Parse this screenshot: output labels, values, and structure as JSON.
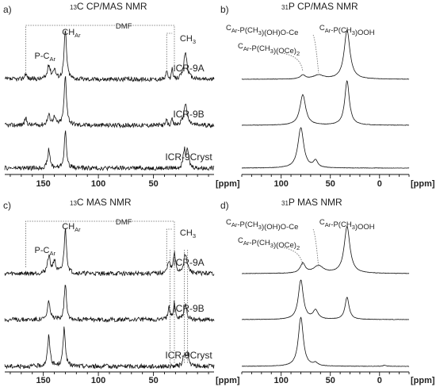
{
  "chart_data": [
    {
      "panel": "a)",
      "title_sup": "13",
      "title": "C CP/MAS NMR",
      "type": "line",
      "xlim": [
        185,
        -5
      ],
      "xticks": [
        150,
        100,
        50
      ],
      "xunit": "[ppm]",
      "bracket_label": "DMF",
      "series": [
        {
          "name": "ICR-9A",
          "peaks": [
            [
              166,
              0.12,
              1.2
            ],
            [
              145,
              0.28,
              1.5
            ],
            [
              140,
              0.2,
              1.4
            ],
            [
              130,
              1.0,
              1.3
            ],
            [
              38,
              0.2,
              0.6
            ],
            [
              33,
              0.2,
              0.6
            ],
            [
              21,
              0.55,
              1.8
            ]
          ]
        },
        {
          "name": "ICR-9B",
          "peaks": [
            [
              166,
              0.14,
              1.2
            ],
            [
              145,
              0.2,
              1.5
            ],
            [
              140,
              0.15,
              1.4
            ],
            [
              130,
              1.0,
              1.3
            ],
            [
              38,
              0.12,
              0.6
            ],
            [
              33,
              0.12,
              0.6
            ],
            [
              21,
              0.45,
              1.8
            ]
          ]
        },
        {
          "name": "ICR-9Cryst",
          "peaks": [
            [
              145,
              0.38,
              1.2
            ],
            [
              130,
              0.75,
              1.2
            ],
            [
              22,
              0.36,
              1.2
            ],
            [
              19,
              0.34,
              1.2
            ]
          ]
        }
      ],
      "annotations": [
        {
          "text": "P-C",
          "sub": "Ar"
        },
        {
          "text": "CH",
          "sub": "Ar"
        },
        {
          "text": "CH",
          "sub": "3"
        }
      ]
    },
    {
      "panel": "b)",
      "title_sup": "31",
      "title": "P CP/MAS NMR",
      "type": "line",
      "xlim": [
        140,
        -30
      ],
      "xticks": [
        100,
        50,
        0
      ],
      "xunit": "[ppm]",
      "series": [
        {
          "name": "",
          "peaks": [
            [
              78,
              0.08,
              3
            ],
            [
              62,
              0.08,
              6
            ],
            [
              33,
              1.0,
              3.5
            ]
          ]
        },
        {
          "name": "",
          "peaks": [
            [
              78,
              0.62,
              3.5
            ],
            [
              33,
              0.9,
              2.8
            ]
          ]
        },
        {
          "name": "",
          "peaks": [
            [
              80,
              0.82,
              3.5
            ],
            [
              65,
              0.14,
              2.5
            ]
          ]
        }
      ],
      "annotations": [
        {
          "text": "C",
          "sub": "Ar",
          "text2": "-P(CH",
          "sub2": "3",
          "text3": ")(OH)O-Ce"
        },
        {
          "text": "C",
          "sub": "Ar",
          "text2": "-P(CH",
          "sub2": "3",
          "text3": ")(OCe)",
          "sub3": "2"
        },
        {
          "text": "C",
          "sub": "Ar",
          "text2": "-P(CH",
          "sub2": "3",
          "text3": ")OOH"
        }
      ]
    },
    {
      "panel": "c)",
      "title_sup": "13",
      "title": "C MAS NMR",
      "type": "line",
      "xlim": [
        185,
        -5
      ],
      "xticks": [
        150,
        100,
        50
      ],
      "xunit": "[ppm]",
      "bracket_label": "DMF",
      "series": [
        {
          "name": "ICR-9A",
          "peaks": [
            [
              145,
              0.35,
              1.5
            ],
            [
              140,
              0.25,
              1.4
            ],
            [
              130,
              0.9,
              1.3
            ],
            [
              36,
              0.25,
              1.2
            ],
            [
              31,
              0.4,
              1.2
            ],
            [
              21,
              0.4,
              1.8
            ]
          ]
        },
        {
          "name": "ICR-9B",
          "peaks": [
            [
              145,
              0.4,
              1.2
            ],
            [
              130,
              0.75,
              1.2
            ],
            [
              36,
              0.25,
              1.0
            ],
            [
              31,
              0.35,
              1.0
            ],
            [
              21,
              0.3,
              1.5
            ]
          ]
        },
        {
          "name": "ICR-9Cryst",
          "peaks": [
            [
              145,
              0.62,
              1.3
            ],
            [
              131,
              0.8,
              1.2
            ],
            [
              22,
              0.25,
              1.2
            ],
            [
              19,
              0.24,
              1.2
            ]
          ]
        }
      ],
      "annotations": [
        {
          "text": "P-C",
          "sub": "Ar"
        },
        {
          "text": "CH",
          "sub": "Ar"
        },
        {
          "text": "CH",
          "sub": "3"
        }
      ]
    },
    {
      "panel": "d)",
      "title_sup": "31",
      "title": "P MAS NMR",
      "type": "line",
      "xlim": [
        140,
        -30
      ],
      "xticks": [
        100,
        50,
        0
      ],
      "xunit": "[ppm]",
      "series": [
        {
          "name": "",
          "peaks": [
            [
              78,
              0.2,
              3
            ],
            [
              62,
              0.15,
              6
            ],
            [
              33,
              0.95,
              3.5
            ]
          ]
        },
        {
          "name": "",
          "peaks": [
            [
              80,
              0.8,
              3
            ],
            [
              65,
              0.18,
              3
            ],
            [
              33,
              0.45,
              2.5
            ]
          ]
        },
        {
          "name": "",
          "peaks": [
            [
              80,
              1.0,
              3
            ],
            [
              65,
              0.06,
              2.5
            ],
            [
              -5,
              0.02,
              2
            ]
          ]
        }
      ],
      "annotations": [
        {
          "text": "C",
          "sub": "Ar",
          "text2": "-P(CH",
          "sub2": "3",
          "text3": ")(OH)O-Ce"
        },
        {
          "text": "C",
          "sub": "Ar",
          "text2": "-P(CH",
          "sub2": "3",
          "text3": ")(OCe)",
          "sub3": "2"
        },
        {
          "text": "C",
          "sub": "Ar",
          "text2": "-P(CH",
          "sub2": "3",
          "text3": ")OOH"
        }
      ]
    }
  ]
}
